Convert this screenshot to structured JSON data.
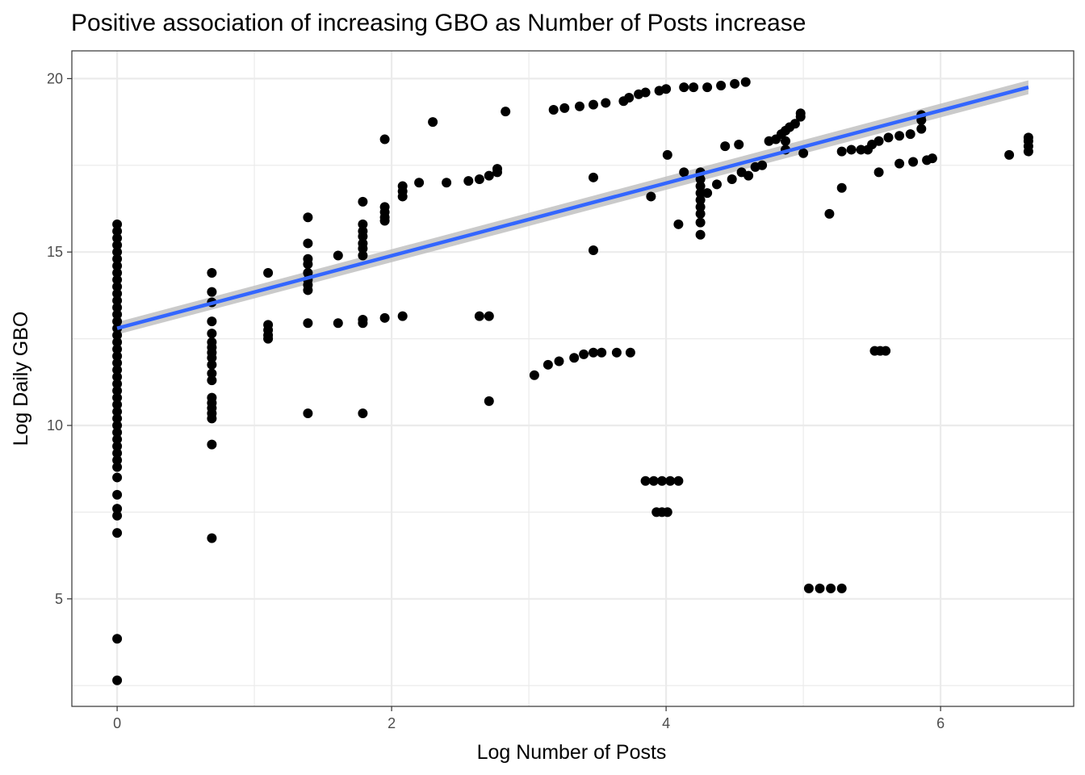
{
  "chart_data": {
    "type": "scatter",
    "title": "Positive association of increasing GBO as Number of Posts increase",
    "xlabel": "Log Number of Posts",
    "ylabel": "Log Daily GBO",
    "xlim": [
      -0.33,
      6.97
    ],
    "ylim": [
      1.9,
      20.8
    ],
    "x_ticks": [
      0,
      2,
      4,
      6
    ],
    "x_tick_labels": [
      "0",
      "2",
      "4",
      "6"
    ],
    "y_ticks": [
      5,
      10,
      15,
      20
    ],
    "y_tick_labels": [
      "5",
      "10",
      "15",
      "20"
    ],
    "grid": true,
    "legend": "none",
    "colors": {
      "points": "#000000",
      "fit_line": "#3366ff",
      "confidence_band": "#bdbdbd",
      "grid": "#ebebeb",
      "panel_border": "#333333"
    },
    "series": [
      {
        "kind": "points",
        "points": [
          [
            0,
            15.8
          ],
          [
            0,
            15.6
          ],
          [
            0,
            15.4
          ],
          [
            0,
            15.2
          ],
          [
            0,
            15.0
          ],
          [
            0,
            14.8
          ],
          [
            0,
            14.6
          ],
          [
            0,
            14.4
          ],
          [
            0,
            14.2
          ],
          [
            0,
            14.0
          ],
          [
            0,
            13.8
          ],
          [
            0,
            13.6
          ],
          [
            0,
            13.4
          ],
          [
            0,
            13.2
          ],
          [
            0,
            13.0
          ],
          [
            0,
            12.8
          ],
          [
            0,
            12.6
          ],
          [
            0,
            12.4
          ],
          [
            0,
            12.2
          ],
          [
            0,
            12.0
          ],
          [
            0,
            11.8
          ],
          [
            0,
            11.6
          ],
          [
            0,
            11.4
          ],
          [
            0,
            11.2
          ],
          [
            0,
            11.0
          ],
          [
            0,
            10.8
          ],
          [
            0,
            10.6
          ],
          [
            0,
            10.4
          ],
          [
            0,
            10.2
          ],
          [
            0,
            10.0
          ],
          [
            0,
            9.8
          ],
          [
            0,
            9.6
          ],
          [
            0,
            9.4
          ],
          [
            0,
            9.2
          ],
          [
            0,
            9.0
          ],
          [
            0,
            8.8
          ],
          [
            0,
            8.5
          ],
          [
            0,
            8.0
          ],
          [
            0,
            7.6
          ],
          [
            0,
            7.4
          ],
          [
            0,
            6.9
          ],
          [
            0,
            3.85
          ],
          [
            0,
            2.65
          ],
          [
            0.69,
            14.4
          ],
          [
            0.69,
            13.85
          ],
          [
            0.69,
            13.55
          ],
          [
            0.69,
            13.0
          ],
          [
            0.69,
            12.65
          ],
          [
            0.69,
            12.4
          ],
          [
            0.69,
            12.25
          ],
          [
            0.69,
            12.1
          ],
          [
            0.69,
            11.95
          ],
          [
            0.69,
            11.75
          ],
          [
            0.69,
            11.5
          ],
          [
            0.69,
            11.3
          ],
          [
            0.69,
            10.8
          ],
          [
            0.69,
            10.65
          ],
          [
            0.69,
            10.5
          ],
          [
            0.69,
            10.35
          ],
          [
            0.69,
            10.2
          ],
          [
            0.69,
            9.45
          ],
          [
            0.69,
            6.75
          ],
          [
            1.1,
            14.4
          ],
          [
            1.1,
            12.9
          ],
          [
            1.1,
            12.75
          ],
          [
            1.1,
            12.6
          ],
          [
            1.1,
            12.5
          ],
          [
            1.39,
            16.0
          ],
          [
            1.39,
            15.25
          ],
          [
            1.39,
            14.8
          ],
          [
            1.39,
            14.65
          ],
          [
            1.39,
            14.4
          ],
          [
            1.39,
            14.2
          ],
          [
            1.39,
            14.05
          ],
          [
            1.39,
            13.9
          ],
          [
            1.39,
            12.95
          ],
          [
            1.39,
            10.35
          ],
          [
            1.61,
            14.9
          ],
          [
            1.61,
            12.95
          ],
          [
            1.79,
            16.45
          ],
          [
            1.79,
            15.8
          ],
          [
            1.79,
            15.6
          ],
          [
            1.79,
            15.45
          ],
          [
            1.79,
            15.25
          ],
          [
            1.79,
            15.1
          ],
          [
            1.79,
            14.9
          ],
          [
            1.79,
            13.05
          ],
          [
            1.79,
            12.95
          ],
          [
            1.79,
            10.35
          ],
          [
            1.95,
            18.25
          ],
          [
            1.95,
            16.3
          ],
          [
            1.95,
            16.15
          ],
          [
            1.95,
            16.0
          ],
          [
            1.95,
            15.9
          ],
          [
            1.95,
            13.1
          ],
          [
            2.08,
            16.9
          ],
          [
            2.08,
            16.75
          ],
          [
            2.08,
            16.6
          ],
          [
            2.08,
            13.15
          ],
          [
            2.2,
            17.0
          ],
          [
            2.3,
            18.75
          ],
          [
            2.4,
            17.0
          ],
          [
            2.56,
            17.05
          ],
          [
            2.64,
            17.1
          ],
          [
            2.71,
            17.2
          ],
          [
            2.77,
            17.3
          ],
          [
            2.77,
            17.4
          ],
          [
            2.64,
            13.15
          ],
          [
            2.71,
            13.15
          ],
          [
            2.71,
            10.7
          ],
          [
            2.83,
            19.05
          ],
          [
            3.04,
            11.45
          ],
          [
            3.14,
            11.75
          ],
          [
            3.22,
            11.85
          ],
          [
            3.33,
            11.95
          ],
          [
            3.4,
            12.05
          ],
          [
            3.47,
            12.1
          ],
          [
            3.53,
            12.1
          ],
          [
            3.64,
            12.1
          ],
          [
            3.74,
            12.1
          ],
          [
            3.18,
            19.1
          ],
          [
            3.26,
            19.15
          ],
          [
            3.37,
            19.2
          ],
          [
            3.47,
            19.25
          ],
          [
            3.56,
            19.3
          ],
          [
            3.69,
            19.35
          ],
          [
            3.73,
            19.45
          ],
          [
            3.8,
            19.55
          ],
          [
            3.85,
            19.6
          ],
          [
            3.95,
            19.65
          ],
          [
            4.0,
            19.7
          ],
          [
            4.13,
            19.75
          ],
          [
            4.2,
            19.75
          ],
          [
            4.3,
            19.75
          ],
          [
            4.4,
            19.8
          ],
          [
            4.5,
            19.85
          ],
          [
            4.58,
            19.9
          ],
          [
            3.47,
            17.15
          ],
          [
            3.47,
            15.05
          ],
          [
            3.89,
            16.6
          ],
          [
            4.01,
            17.8
          ],
          [
            4.09,
            15.8
          ],
          [
            4.13,
            17.3
          ],
          [
            3.85,
            8.4
          ],
          [
            3.91,
            8.4
          ],
          [
            3.97,
            8.4
          ],
          [
            4.03,
            8.4
          ],
          [
            4.09,
            8.4
          ],
          [
            3.93,
            7.5
          ],
          [
            3.97,
            7.5
          ],
          [
            4.01,
            7.5
          ],
          [
            4.25,
            17.3
          ],
          [
            4.25,
            17.1
          ],
          [
            4.25,
            16.9
          ],
          [
            4.25,
            16.7
          ],
          [
            4.25,
            16.5
          ],
          [
            4.25,
            16.3
          ],
          [
            4.25,
            16.1
          ],
          [
            4.25,
            15.85
          ],
          [
            4.25,
            15.5
          ],
          [
            4.3,
            16.7
          ],
          [
            4.37,
            16.95
          ],
          [
            4.48,
            17.1
          ],
          [
            4.43,
            18.05
          ],
          [
            4.53,
            18.1
          ],
          [
            4.55,
            17.3
          ],
          [
            4.6,
            17.2
          ],
          [
            4.65,
            17.45
          ],
          [
            4.7,
            17.5
          ],
          [
            4.75,
            18.2
          ],
          [
            4.8,
            18.25
          ],
          [
            4.84,
            18.4
          ],
          [
            4.87,
            18.5
          ],
          [
            4.87,
            18.2
          ],
          [
            4.87,
            17.95
          ],
          [
            4.9,
            18.6
          ],
          [
            4.94,
            18.7
          ],
          [
            4.98,
            18.9
          ],
          [
            4.98,
            19.0
          ],
          [
            5.0,
            17.85
          ],
          [
            5.04,
            5.3
          ],
          [
            5.12,
            5.3
          ],
          [
            5.2,
            5.3
          ],
          [
            5.28,
            5.3
          ],
          [
            5.19,
            16.1
          ],
          [
            5.28,
            16.85
          ],
          [
            5.28,
            17.9
          ],
          [
            5.35,
            17.95
          ],
          [
            5.42,
            17.95
          ],
          [
            5.47,
            17.95
          ],
          [
            5.55,
            17.3
          ],
          [
            5.5,
            18.1
          ],
          [
            5.55,
            18.2
          ],
          [
            5.62,
            18.3
          ],
          [
            5.7,
            18.35
          ],
          [
            5.78,
            18.4
          ],
          [
            5.86,
            18.55
          ],
          [
            5.86,
            18.8
          ],
          [
            5.86,
            18.95
          ],
          [
            5.52,
            12.15
          ],
          [
            5.56,
            12.15
          ],
          [
            5.6,
            12.15
          ],
          [
            5.7,
            17.55
          ],
          [
            5.8,
            17.6
          ],
          [
            5.9,
            17.65
          ],
          [
            5.94,
            17.7
          ],
          [
            6.5,
            17.8
          ],
          [
            6.64,
            17.9
          ],
          [
            6.64,
            18.05
          ],
          [
            6.64,
            18.2
          ],
          [
            6.64,
            18.3
          ]
        ]
      },
      {
        "kind": "fit",
        "method": "linear",
        "x": [
          0,
          6.64
        ],
        "y": [
          12.8,
          19.75
        ],
        "ci_halfwidth": [
          0.18,
          0.2
        ]
      }
    ]
  }
}
